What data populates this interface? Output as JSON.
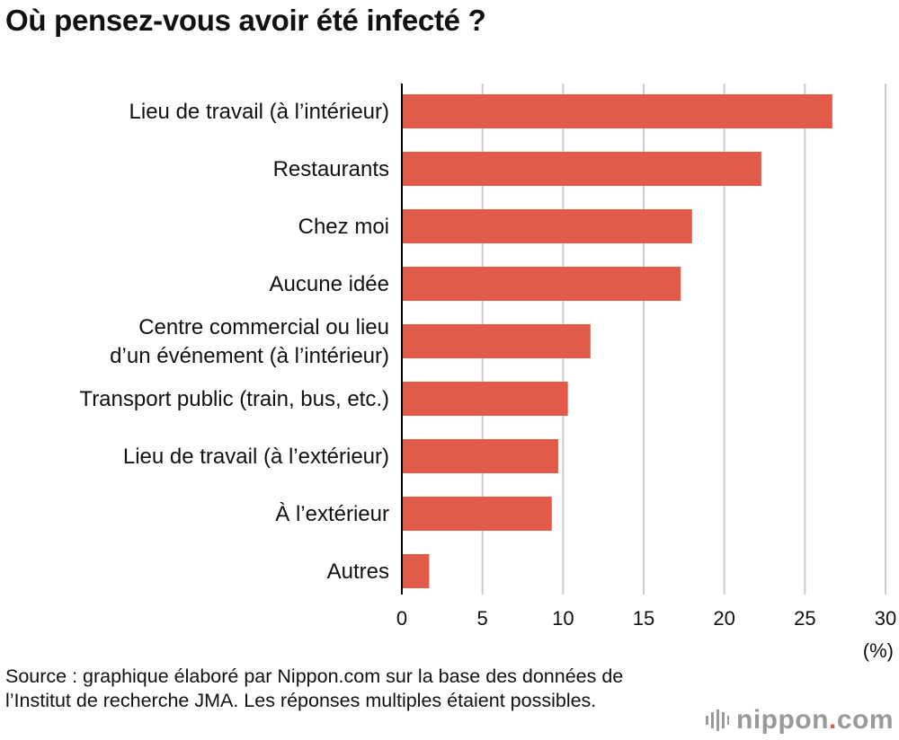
{
  "title": "Où pensez-vous avoir été infecté ?",
  "unit_label": "(%)",
  "source": "Source : graphique élaboré par Nippon.com sur la base des données de l’Institut de recherche JMA. Les réponses multiples étaient possibles.",
  "logo": {
    "name": "nippon",
    "dot": ".",
    "tld": "com"
  },
  "colors": {
    "bar": "#e15b48",
    "grid": "#cccccc",
    "axis": "#000000",
    "text": "#111111"
  },
  "chart_data": {
    "type": "bar",
    "orientation": "horizontal",
    "title": "Où pensez-vous avoir été infecté ?",
    "xlabel": "(%)",
    "ylabel": "",
    "categories": [
      [
        "Lieu de travail (à l’intérieur)"
      ],
      [
        "Restaurants"
      ],
      [
        "Chez moi"
      ],
      [
        "Aucune idée"
      ],
      [
        "Centre commercial ou lieu",
        "d’un événement (à l’intérieur)"
      ],
      [
        "Transport public (train, bus, etc.)"
      ],
      [
        "Lieu de travail (à l’extérieur)"
      ],
      [
        "À l’extérieur"
      ],
      [
        "Autres"
      ]
    ],
    "values": [
      26.7,
      22.3,
      18.0,
      17.3,
      11.7,
      10.3,
      9.7,
      9.3,
      1.7
    ],
    "xlim": [
      0,
      30
    ],
    "xticks": [
      0,
      5,
      10,
      15,
      20,
      25,
      30
    ],
    "grid": true
  }
}
